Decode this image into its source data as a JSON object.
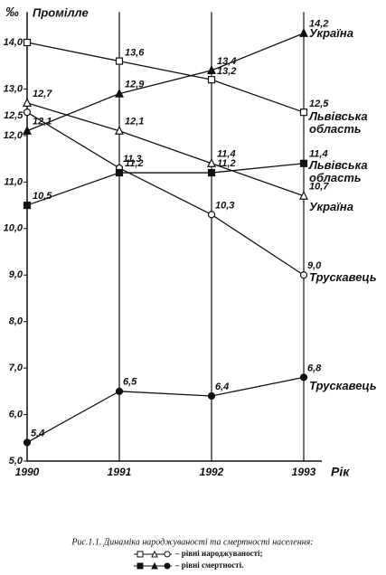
{
  "chart_data": {
    "type": "line",
    "y_unit": "‰",
    "y_label": "Промілле",
    "x_label": "Рік",
    "categories": [
      "1990",
      "1991",
      "1992",
      "1993"
    ],
    "ylim": [
      5.0,
      14.5
    ],
    "yticks": [
      {
        "value": 5,
        "label": "5,0"
      },
      {
        "value": 6,
        "label": "6,0"
      },
      {
        "value": 7,
        "label": "7,0"
      },
      {
        "value": 8,
        "label": "8,0"
      },
      {
        "value": 9,
        "label": "9,0"
      },
      {
        "value": 10,
        "label": "10,0"
      },
      {
        "value": 11,
        "label": "11,0"
      },
      {
        "value": 12,
        "label": "12,0"
      },
      {
        "value": 13,
        "label": "13,0"
      },
      {
        "value": 14,
        "label": "14,0"
      }
    ],
    "series": [
      {
        "name": "Львівська область",
        "color": "#111111",
        "marker": "square",
        "filled": false,
        "values": [
          14.0,
          13.6,
          13.2,
          12.5
        ],
        "value_labels": [
          null,
          "13,6",
          "13,2",
          "12,5"
        ]
      },
      {
        "name": "Україна",
        "color": "#111111",
        "marker": "triangle",
        "filled": false,
        "values": [
          12.7,
          12.1,
          11.4,
          10.7
        ],
        "value_labels": [
          "12,7",
          "12,1",
          "11,4",
          "10,7"
        ]
      },
      {
        "name": "Трускавець",
        "color": "#111111",
        "marker": "circle",
        "filled": false,
        "values": [
          12.5,
          11.3,
          10.3,
          9.0
        ],
        "value_labels": [
          "12,5",
          "11,3",
          "10,3",
          "9,0"
        ]
      },
      {
        "name": "Львівська область",
        "color": "#111111",
        "marker": "square",
        "filled": true,
        "values": [
          10.5,
          11.2,
          11.2,
          11.4
        ],
        "value_labels": [
          "10,5",
          "11,2",
          "11,2",
          "11,4"
        ]
      },
      {
        "name": "Україна",
        "color": "#111111",
        "marker": "triangle",
        "filled": true,
        "values": [
          12.1,
          12.9,
          13.4,
          14.2
        ],
        "value_labels": [
          "12,1",
          "12,9",
          "13,4",
          "14,2"
        ]
      },
      {
        "name": "Трускавець",
        "color": "#111111",
        "marker": "circle",
        "filled": true,
        "values": [
          5.4,
          6.5,
          6.4,
          6.8
        ],
        "value_labels": [
          "5,4",
          "6,5",
          "6,4",
          "6,8"
        ]
      }
    ],
    "caption": "Рис.1.1. Динаміка народжуваності та смертності населення:",
    "legend_birth": "– рівні народжуваності;",
    "legend_death": "– рівні смертності."
  }
}
